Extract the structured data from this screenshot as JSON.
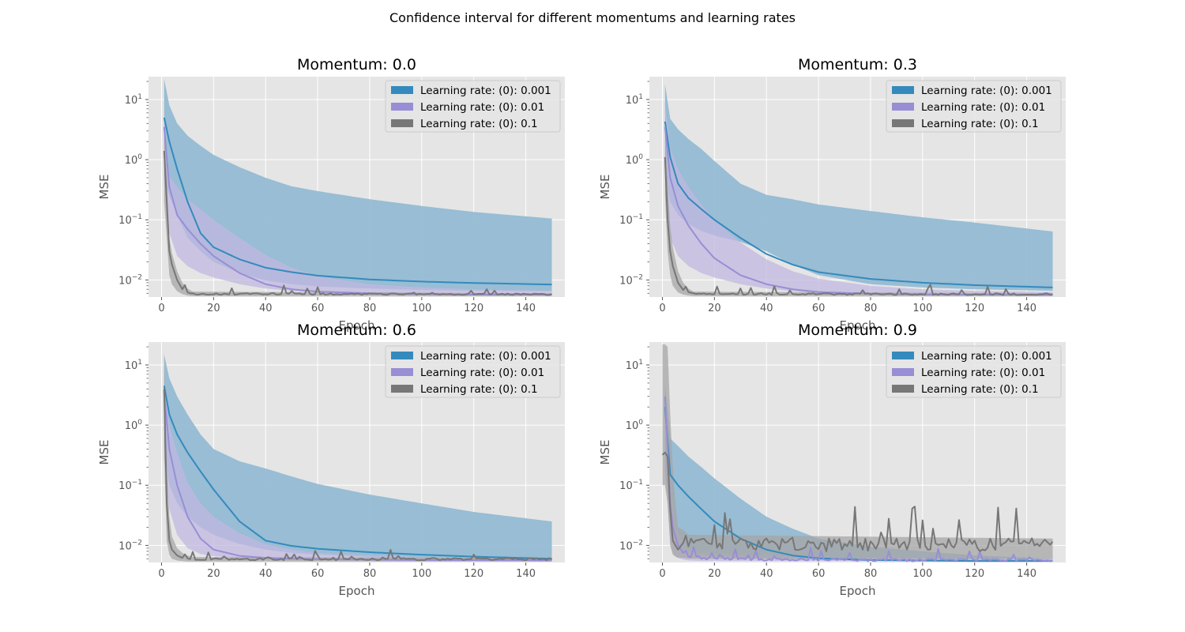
{
  "figure": {
    "title": "Confidence interval for different momentums and learning rates"
  },
  "chart_data": [
    {
      "type": "line",
      "title": "Momentum: 0.0",
      "xlabel": "Epoch",
      "ylabel": "MSE",
      "yscale": "log",
      "xlim": [
        -5,
        155
      ],
      "ylim": [
        0.0052,
        24
      ],
      "xticks": [
        0,
        20,
        40,
        60,
        80,
        100,
        120,
        140
      ],
      "yticks": [
        0.01,
        0.1,
        1,
        10
      ],
      "ytick_labels": [
        {
          "base": "10",
          "exp": "−2"
        },
        {
          "base": "10",
          "exp": "−1"
        },
        {
          "base": "10",
          "exp": "0"
        },
        {
          "base": "10",
          "exp": "1"
        }
      ],
      "grid": true,
      "legend": "top-right",
      "series": [
        {
          "name": "Learning rate: (0): 0.001",
          "color": "#348abd",
          "band_color": "#8fb8d1",
          "x": [
            1,
            3,
            6,
            10,
            15,
            20,
            30,
            40,
            50,
            60,
            80,
            100,
            120,
            150
          ],
          "mean": [
            5,
            2,
            0.7,
            0.2,
            0.06,
            0.035,
            0.022,
            0.016,
            0.0135,
            0.0118,
            0.0102,
            0.0094,
            0.0089,
            0.0084
          ],
          "lower": [
            0.5,
            0.25,
            0.12,
            0.05,
            0.03,
            0.02,
            0.013,
            0.0098,
            0.0085,
            0.0078,
            0.0072,
            0.0068,
            0.0066,
            0.0065
          ],
          "upper": [
            22,
            8,
            4,
            2.5,
            1.7,
            1.2,
            0.75,
            0.5,
            0.36,
            0.3,
            0.22,
            0.17,
            0.135,
            0.105
          ]
        },
        {
          "name": "Learning rate: (0): 0.01",
          "color": "#988ed5",
          "band_color": "#c0b8e0",
          "x": [
            1,
            3,
            6,
            10,
            15,
            20,
            30,
            40,
            50,
            60,
            80,
            100,
            120,
            150
          ],
          "mean": [
            3.5,
            0.35,
            0.12,
            0.07,
            0.04,
            0.025,
            0.013,
            0.0085,
            0.007,
            0.0064,
            0.006,
            0.0058,
            0.0057,
            0.0057
          ],
          "lower": [
            0.4,
            0.06,
            0.025,
            0.017,
            0.013,
            0.011,
            0.0085,
            0.0072,
            0.0066,
            0.0062,
            0.0059,
            0.0057,
            0.0056,
            0.0056
          ],
          "upper": [
            5,
            0.55,
            0.35,
            0.22,
            0.15,
            0.1,
            0.05,
            0.026,
            0.016,
            0.0115,
            0.0085,
            0.0075,
            0.007,
            0.0066
          ]
        },
        {
          "name": "Learning rate: (0): 0.1",
          "color": "#777777",
          "band_color": "#a5a5a5",
          "x": [
            1,
            2,
            3,
            4,
            6,
            8,
            10,
            12,
            150
          ],
          "mean": [
            1.4,
            0.2,
            0.03,
            0.018,
            0.01,
            0.007,
            0.0062,
            0.0058,
            0.0057
          ],
          "lower": [
            0.2,
            0.05,
            0.012,
            0.0085,
            0.0065,
            0.0058,
            0.0055,
            0.0054,
            0.0054
          ],
          "upper": [
            3,
            0.5,
            0.05,
            0.028,
            0.014,
            0.009,
            0.0072,
            0.0064,
            0.006
          ],
          "noise": 0.06
        },
        {
          "name": "",
          "color": "#ffffff",
          "band_color": "#ffffff",
          "x": [],
          "mean": [],
          "lower": [],
          "upper": []
        }
      ]
    },
    {
      "type": "line",
      "title": "Momentum: 0.3",
      "xlabel": "Epoch",
      "ylabel": "MSE",
      "yscale": "log",
      "xlim": [
        -5,
        155
      ],
      "ylim": [
        0.0052,
        24
      ],
      "xticks": [
        0,
        20,
        40,
        60,
        80,
        100,
        120,
        140
      ],
      "yticks": [
        0.01,
        0.1,
        1,
        10
      ],
      "ytick_labels": [
        {
          "base": "10",
          "exp": "−2"
        },
        {
          "base": "10",
          "exp": "−1"
        },
        {
          "base": "10",
          "exp": "0"
        },
        {
          "base": "10",
          "exp": "1"
        }
      ],
      "grid": true,
      "legend": "top-right",
      "series": [
        {
          "name": "Learning rate: (0): 0.001",
          "color": "#348abd",
          "band_color": "#8fb8d1",
          "x": [
            1,
            3,
            6,
            10,
            15,
            20,
            30,
            40,
            50,
            60,
            80,
            100,
            120,
            150
          ],
          "mean": [
            4.3,
            1.1,
            0.4,
            0.23,
            0.15,
            0.1,
            0.05,
            0.027,
            0.018,
            0.0135,
            0.0104,
            0.009,
            0.0082,
            0.0075
          ],
          "lower": [
            0.6,
            0.2,
            0.12,
            0.085,
            0.065,
            0.055,
            0.043,
            0.03,
            0.018,
            0.012,
            0.0085,
            0.0075,
            0.007,
            0.0066
          ],
          "upper": [
            18,
            4.8,
            3.2,
            2.2,
            1.5,
            0.95,
            0.4,
            0.26,
            0.22,
            0.18,
            0.14,
            0.11,
            0.09,
            0.064
          ]
        },
        {
          "name": "Learning rate: (0): 0.01",
          "color": "#988ed5",
          "band_color": "#c0b8e0",
          "x": [
            1,
            3,
            6,
            10,
            15,
            20,
            30,
            40,
            50,
            60,
            80,
            100,
            120,
            150
          ],
          "mean": [
            3.5,
            0.5,
            0.17,
            0.08,
            0.04,
            0.023,
            0.012,
            0.0085,
            0.007,
            0.0063,
            0.0059,
            0.0057,
            0.0057,
            0.0056
          ],
          "lower": [
            0.5,
            0.05,
            0.025,
            0.017,
            0.013,
            0.011,
            0.0085,
            0.0072,
            0.0065,
            0.006,
            0.0057,
            0.0056,
            0.0056,
            0.0055
          ],
          "upper": [
            9,
            1.6,
            0.7,
            0.35,
            0.18,
            0.1,
            0.042,
            0.022,
            0.014,
            0.0105,
            0.008,
            0.007,
            0.0066,
            0.0063
          ]
        },
        {
          "name": "Learning rate: (0): 0.1",
          "color": "#777777",
          "band_color": "#a5a5a5",
          "x": [
            1,
            2,
            3,
            4,
            6,
            8,
            10,
            12,
            150
          ],
          "mean": [
            1.1,
            0.1,
            0.03,
            0.017,
            0.009,
            0.0068,
            0.006,
            0.0058,
            0.0057
          ],
          "lower": [
            0.25,
            0.03,
            0.012,
            0.008,
            0.0062,
            0.0057,
            0.0055,
            0.0054,
            0.0054
          ],
          "upper": [
            3,
            0.4,
            0.08,
            0.035,
            0.014,
            0.009,
            0.0072,
            0.0064,
            0.006
          ],
          "noise": 0.07
        },
        {
          "name": "",
          "color": "#ffffff",
          "band_color": "#ffffff",
          "x": [],
          "mean": [],
          "lower": [],
          "upper": []
        }
      ]
    },
    {
      "type": "line",
      "title": "Momentum: 0.6",
      "xlabel": "Epoch",
      "ylabel": "MSE",
      "yscale": "log",
      "xlim": [
        -5,
        155
      ],
      "ylim": [
        0.0052,
        24
      ],
      "xticks": [
        0,
        20,
        40,
        60,
        80,
        100,
        120,
        140
      ],
      "yticks": [
        0.01,
        0.1,
        1,
        10
      ],
      "ytick_labels": [
        {
          "base": "10",
          "exp": "−2"
        },
        {
          "base": "10",
          "exp": "−1"
        },
        {
          "base": "10",
          "exp": "0"
        },
        {
          "base": "10",
          "exp": "1"
        }
      ],
      "grid": true,
      "legend": "top-right",
      "series": [
        {
          "name": "Learning rate: (0): 0.001",
          "color": "#348abd",
          "band_color": "#8fb8d1",
          "x": [
            1,
            3,
            6,
            10,
            15,
            20,
            30,
            40,
            50,
            60,
            80,
            100,
            120,
            150
          ],
          "mean": [
            4.5,
            1.5,
            0.7,
            0.35,
            0.17,
            0.085,
            0.025,
            0.012,
            0.0098,
            0.0088,
            0.0077,
            0.007,
            0.0065,
            0.006
          ],
          "lower": [
            0.4,
            0.1,
            0.05,
            0.03,
            0.02,
            0.015,
            0.0105,
            0.0085,
            0.0075,
            0.007,
            0.0064,
            0.006,
            0.0058,
            0.0056
          ],
          "upper": [
            15,
            6,
            3,
            1.5,
            0.7,
            0.4,
            0.25,
            0.19,
            0.14,
            0.105,
            0.07,
            0.05,
            0.036,
            0.025
          ]
        },
        {
          "name": "Learning rate: (0): 0.01",
          "color": "#988ed5",
          "band_color": "#c0b8e0",
          "x": [
            1,
            3,
            6,
            10,
            15,
            20,
            30,
            40,
            50,
            60,
            80,
            100,
            120,
            150
          ],
          "mean": [
            3.5,
            0.4,
            0.1,
            0.03,
            0.013,
            0.0085,
            0.0067,
            0.0062,
            0.006,
            0.0059,
            0.0058,
            0.0057,
            0.0057,
            0.0056
          ],
          "lower": [
            0.3,
            0.04,
            0.015,
            0.009,
            0.0072,
            0.0066,
            0.0061,
            0.0059,
            0.0058,
            0.0057,
            0.0056,
            0.0056,
            0.0055,
            0.0055
          ],
          "upper": [
            6,
            1,
            0.35,
            0.11,
            0.05,
            0.03,
            0.016,
            0.0105,
            0.0085,
            0.0075,
            0.0068,
            0.0064,
            0.0062,
            0.006
          ]
        },
        {
          "name": "Learning rate: (0): 0.1",
          "color": "#777777",
          "band_color": "#a5a5a5",
          "x": [
            1,
            2,
            3,
            4,
            6,
            8,
            10,
            12,
            150
          ],
          "mean": [
            4,
            0.05,
            0.012,
            0.0085,
            0.0068,
            0.0062,
            0.0059,
            0.0058,
            0.0058
          ],
          "lower": [
            0.3,
            0.012,
            0.007,
            0.006,
            0.0056,
            0.0055,
            0.0054,
            0.0054,
            0.0054
          ],
          "upper": [
            18,
            0.2,
            0.03,
            0.014,
            0.009,
            0.0075,
            0.0068,
            0.0064,
            0.0062
          ],
          "noise": 0.09
        },
        {
          "name": "",
          "color": "#ffffff",
          "band_color": "#ffffff",
          "x": [],
          "mean": [],
          "lower": [],
          "upper": []
        }
      ]
    },
    {
      "type": "line",
      "title": "Momentum: 0.9",
      "xlabel": "Epoch",
      "ylabel": "MSE",
      "yscale": "log",
      "xlim": [
        -5,
        155
      ],
      "ylim": [
        0.0052,
        24
      ],
      "xticks": [
        0,
        20,
        40,
        60,
        80,
        100,
        120,
        140
      ],
      "yticks": [
        0.01,
        0.1,
        1,
        10
      ],
      "ytick_labels": [
        {
          "base": "10",
          "exp": "−2"
        },
        {
          "base": "10",
          "exp": "−1"
        },
        {
          "base": "10",
          "exp": "0"
        },
        {
          "base": "10",
          "exp": "1"
        }
      ],
      "grid": true,
      "legend": "top-right",
      "series": [
        {
          "name": "Learning rate: (0): 0.001",
          "color": "#348abd",
          "band_color": "#8fb8d1",
          "x": [
            1,
            3,
            6,
            10,
            15,
            20,
            30,
            40,
            50,
            60,
            80,
            100,
            120,
            150
          ],
          "mean": [
            2,
            0.15,
            0.1,
            0.065,
            0.04,
            0.025,
            0.013,
            0.0085,
            0.0068,
            0.0061,
            0.0057,
            0.0056,
            0.0055,
            0.0055
          ],
          "lower": [
            0.2,
            0.015,
            0.0085,
            0.0075,
            0.007,
            0.0066,
            0.0062,
            0.006,
            0.0058,
            0.0057,
            0.0056,
            0.0055,
            0.0055,
            0.0055
          ],
          "upper": [
            5,
            0.6,
            0.45,
            0.3,
            0.2,
            0.13,
            0.06,
            0.03,
            0.019,
            0.013,
            0.0095,
            0.008,
            0.0068,
            0.006
          ]
        },
        {
          "name": "Learning rate: (0): 0.01",
          "color": "#988ed5",
          "band_color": "#c0b8e0",
          "x": [
            1,
            2,
            3,
            4,
            6,
            8,
            10,
            15,
            20,
            30,
            40,
            60,
            80,
            100,
            150
          ],
          "mean": [
            3,
            0.4,
            0.05,
            0.02,
            0.01,
            0.0075,
            0.0065,
            0.006,
            0.0059,
            0.0058,
            0.0057,
            0.0057,
            0.0056,
            0.0056,
            0.0056
          ],
          "lower": [
            0.4,
            0.05,
            0.012,
            0.0075,
            0.0062,
            0.0058,
            0.0056,
            0.0055,
            0.0055,
            0.0055,
            0.0055,
            0.0055,
            0.0055,
            0.0055,
            0.0055
          ],
          "upper": [
            4,
            1,
            0.15,
            0.05,
            0.016,
            0.011,
            0.0085,
            0.0075,
            0.0072,
            0.007,
            0.0068,
            0.0065,
            0.0063,
            0.0062,
            0.006
          ],
          "noise": 0.1
        },
        {
          "name": "Learning rate: (0): 0.1",
          "color": "#777777",
          "band_color": "#a5a5a5",
          "x": [
            0,
            1,
            2,
            3,
            4,
            5,
            6,
            8,
            10,
            150
          ],
          "mean": [
            0.32,
            0.35,
            0.3,
            0.04,
            0.012,
            0.01,
            0.0085,
            0.011,
            0.0095,
            0.0095
          ],
          "lower": [
            0.1,
            0.1,
            0.05,
            0.01,
            0.007,
            0.0065,
            0.0062,
            0.0062,
            0.006,
            0.006
          ],
          "upper": [
            22,
            22,
            20,
            1.5,
            0.2,
            0.05,
            0.02,
            0.018,
            0.015,
            0.013
          ],
          "noise": 0.55
        },
        {
          "name": "",
          "color": "#ffffff",
          "band_color": "#ffffff",
          "x": [],
          "mean": [],
          "lower": [],
          "upper": []
        }
      ]
    }
  ]
}
